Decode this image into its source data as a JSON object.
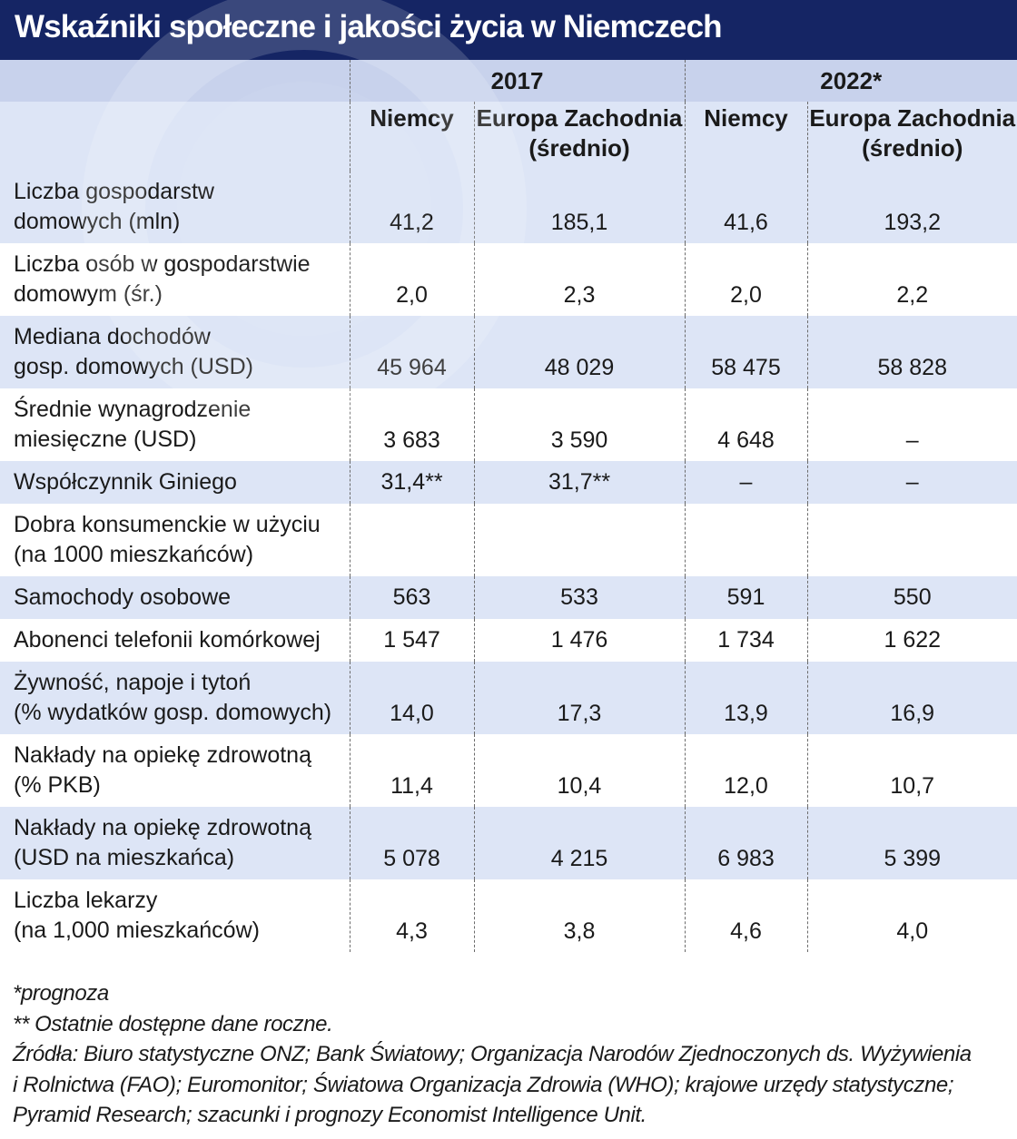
{
  "title": "Wskaźniki społeczne i jakości życia w Niemczech",
  "colors": {
    "title_bg": "#152564",
    "header_bg": "#c8d2ec",
    "band_bg": "#dde5f6"
  },
  "header": {
    "years": [
      "2017",
      "2022*"
    ],
    "col_niemcy": "Niemcy",
    "col_europa_line1": "Europa Zachodnia",
    "col_europa_line2": "(średnio)"
  },
  "rows": [
    {
      "label": [
        "Liczba gospodarstw",
        "domowych (mln)"
      ],
      "values": [
        "41,2",
        "185,1",
        "41,6",
        "193,2"
      ]
    },
    {
      "label": [
        "Liczba osób w gospodarstwie",
        "domowym (śr.)"
      ],
      "values": [
        "2,0",
        "2,3",
        "2,0",
        "2,2"
      ]
    },
    {
      "label": [
        "Mediana dochodów",
        "gosp. domowych (USD)"
      ],
      "values": [
        "45 964",
        "48 029",
        "58 475",
        "58 828"
      ]
    },
    {
      "label": [
        "Średnie wynagrodzenie",
        "miesięczne (USD)"
      ],
      "values": [
        "3 683",
        "3 590",
        "4 648",
        "–"
      ]
    },
    {
      "label": [
        "Współczynnik Giniego"
      ],
      "values": [
        "31,4**",
        "31,7**",
        "–",
        "–"
      ]
    },
    {
      "label": [
        "Dobra konsumenckie w użyciu",
        "(na 1000 mieszkańców)"
      ],
      "values": [
        "",
        "",
        "",
        ""
      ]
    },
    {
      "label": [
        "Samochody osobowe"
      ],
      "values": [
        "563",
        "533",
        "591",
        "550"
      ]
    },
    {
      "label": [
        "Abonenci telefonii komórkowej"
      ],
      "values": [
        "1 547",
        "1 476",
        "1 734",
        "1 622"
      ]
    },
    {
      "label": [
        "Żywność, napoje i tytoń",
        "(% wydatków gosp. domowych)"
      ],
      "values": [
        "14,0",
        "17,3",
        "13,9",
        "16,9"
      ]
    },
    {
      "label": [
        "Nakłady na opiekę zdrowotną",
        "(% PKB)"
      ],
      "values": [
        "11,4",
        "10,4",
        "12,0",
        "10,7"
      ]
    },
    {
      "label": [
        "Nakłady na opiekę zdrowotną",
        "(USD na mieszkańca)"
      ],
      "values": [
        "5 078",
        "4 215",
        "6 983",
        "5 399"
      ]
    },
    {
      "label": [
        "Liczba lekarzy",
        "(na 1,000 mieszkańców)"
      ],
      "values": [
        "4,3",
        "3,8",
        "4,6",
        "4,0"
      ]
    }
  ],
  "footnotes": [
    "*prognoza",
    "** Ostatnie dostępne dane roczne.",
    "Źródła: Biuro statystyczne ONZ; Bank Światowy; Organizacja Narodów Zjednoczonych ds. Wyżywienia",
    "i Rolnictwa (FAO); Euromonitor; Światowa Organizacja Zdrowia (WHO); krajowe urzędy statystyczne;",
    "Pyramid Research; szacunki i prognozy Economist Intelligence Unit."
  ],
  "chart_data": {
    "type": "table",
    "title": "Wskaźniki społeczne i jakości życia w Niemczech",
    "column_groups": [
      "2017",
      "2022*"
    ],
    "columns": [
      "Niemcy",
      "Europa Zachodnia (średnio)",
      "Niemcy",
      "Europa Zachodnia (średnio)"
    ],
    "rows": [
      {
        "label": "Liczba gospodarstw domowych (mln)",
        "values": [
          "41,2",
          "185,1",
          "41,6",
          "193,2"
        ]
      },
      {
        "label": "Liczba osób w gospodarstwie domowym (śr.)",
        "values": [
          "2,0",
          "2,3",
          "2,0",
          "2,2"
        ]
      },
      {
        "label": "Mediana dochodów gosp. domowych (USD)",
        "values": [
          "45 964",
          "48 029",
          "58 475",
          "58 828"
        ]
      },
      {
        "label": "Średnie wynagrodzenie miesięczne (USD)",
        "values": [
          "3 683",
          "3 590",
          "4 648",
          "–"
        ]
      },
      {
        "label": "Współczynnik Giniego",
        "values": [
          "31,4**",
          "31,7**",
          "–",
          "–"
        ]
      },
      {
        "label": "Dobra konsumenckie w użyciu (na 1000 mieszkańców)",
        "values": [
          "",
          "",
          "",
          ""
        ]
      },
      {
        "label": "Samochody osobowe",
        "values": [
          "563",
          "533",
          "591",
          "550"
        ]
      },
      {
        "label": "Abonenci telefonii komórkowej",
        "values": [
          "1 547",
          "1 476",
          "1 734",
          "1 622"
        ]
      },
      {
        "label": "Żywność, napoje i tytoń (% wydatków gosp. domowych)",
        "values": [
          "14,0",
          "17,3",
          "13,9",
          "16,9"
        ]
      },
      {
        "label": "Nakłady na opiekę zdrowotną (% PKB)",
        "values": [
          "11,4",
          "10,4",
          "12,0",
          "10,7"
        ]
      },
      {
        "label": "Nakłady na opiekę zdrowotną (USD na mieszkańca)",
        "values": [
          "5 078",
          "4 215",
          "6 983",
          "5 399"
        ]
      },
      {
        "label": "Liczba lekarzy (na 1,000 mieszkańców)",
        "values": [
          "4,3",
          "3,8",
          "4,6",
          "4,0"
        ]
      }
    ]
  }
}
